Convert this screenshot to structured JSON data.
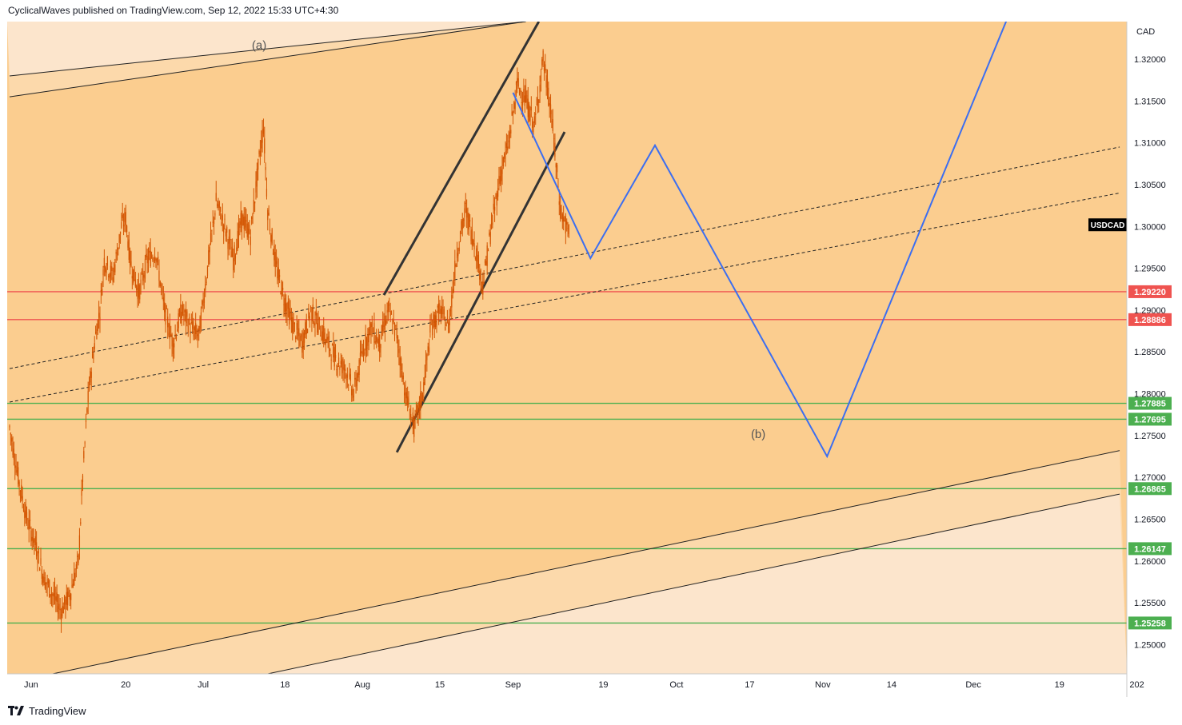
{
  "header": {
    "publisher_line": "CyclicalWaves published on TradingView.com, Sep 12, 2022 15:33 UTC+4:30"
  },
  "footer": {
    "brand": "TradingView"
  },
  "colors": {
    "plot_bg": "#fbcd8f",
    "zone_light": "#fce5cc",
    "zone_mid": "#fcd9ab",
    "candle": "#d35400",
    "forecast": "#3c6ef0",
    "red_level": "#ef5350",
    "green_level": "#4caf50",
    "channel_line": "#333333"
  },
  "chart_data": {
    "type": "candlestick",
    "symbol_label": "USDCAD",
    "currency": "CAD",
    "y_ticks": [
      "1.32000",
      "1.31500",
      "1.31000",
      "1.30500",
      "1.30000",
      "1.29500",
      "1.29000",
      "1.28500",
      "1.28000",
      "1.27500",
      "1.27000",
      "1.26500",
      "1.26000",
      "1.25500",
      "1.25000"
    ],
    "y_tick_values": [
      1.32,
      1.315,
      1.31,
      1.305,
      1.3,
      1.295,
      1.29,
      1.285,
      1.28,
      1.275,
      1.27,
      1.265,
      1.26,
      1.255,
      1.25
    ],
    "x_ticks": [
      "Jun",
      "20",
      "Jul",
      "18",
      "Aug",
      "15",
      "Sep",
      "19",
      "Oct",
      "17",
      "Nov",
      "14",
      "Dec",
      "19",
      "202"
    ],
    "x_tick_bars": [
      5,
      27,
      45,
      64,
      82,
      100,
      117,
      138,
      155,
      172,
      189,
      205,
      224,
      244,
      262
    ],
    "ylim": [
      1.2465,
      1.3245
    ],
    "last_price_label": "USDCAD",
    "horizontal_levels": [
      {
        "label": "1.29220",
        "value": 1.2922,
        "color": "red"
      },
      {
        "label": "1.28886",
        "value": 1.28886,
        "color": "red"
      },
      {
        "label": "1.27885",
        "value": 1.27885,
        "color": "green"
      },
      {
        "label": "1.27695",
        "value": 1.27695,
        "color": "green"
      },
      {
        "label": "1.26865",
        "value": 1.26865,
        "color": "green"
      },
      {
        "label": "1.26147",
        "value": 1.26147,
        "color": "green"
      },
      {
        "label": "1.25258",
        "value": 1.25258,
        "color": "green"
      }
    ],
    "annotations": [
      {
        "text": "(a)",
        "bar": 58,
        "price": 1.3212
      },
      {
        "text": "(b)",
        "bar": 174,
        "price": 1.2747
      }
    ],
    "price_path": [
      [
        0,
        1.276
      ],
      [
        2,
        1.27
      ],
      [
        4,
        1.265
      ],
      [
        6,
        1.262
      ],
      [
        8,
        1.258
      ],
      [
        10,
        1.256
      ],
      [
        12,
        1.254
      ],
      [
        14,
        1.256
      ],
      [
        16,
        1.26
      ],
      [
        17,
        1.27
      ],
      [
        18,
        1.278
      ],
      [
        19,
        1.283
      ],
      [
        20,
        1.287
      ],
      [
        21,
        1.29
      ],
      [
        22,
        1.296
      ],
      [
        24,
        1.294
      ],
      [
        26,
        1.3
      ],
      [
        27,
        1.301
      ],
      [
        28,
        1.296
      ],
      [
        30,
        1.292
      ],
      [
        32,
        1.296
      ],
      [
        34,
        1.297
      ],
      [
        36,
        1.29
      ],
      [
        38,
        1.286
      ],
      [
        40,
        1.29
      ],
      [
        42,
        1.288
      ],
      [
        44,
        1.287
      ],
      [
        46,
        1.295
      ],
      [
        48,
        1.303
      ],
      [
        50,
        1.3
      ],
      [
        52,
        1.296
      ],
      [
        54,
        1.301
      ],
      [
        56,
        1.299
      ],
      [
        58,
        1.308
      ],
      [
        59,
        1.312
      ],
      [
        60,
        1.302
      ],
      [
        62,
        1.295
      ],
      [
        64,
        1.291
      ],
      [
        66,
        1.288
      ],
      [
        68,
        1.286
      ],
      [
        70,
        1.29
      ],
      [
        72,
        1.288
      ],
      [
        74,
        1.286
      ],
      [
        76,
        1.284
      ],
      [
        78,
        1.283
      ],
      [
        80,
        1.28
      ],
      [
        82,
        1.285
      ],
      [
        84,
        1.288
      ],
      [
        86,
        1.286
      ],
      [
        88,
        1.29
      ],
      [
        90,
        1.287
      ],
      [
        92,
        1.28
      ],
      [
        94,
        1.276
      ],
      [
        96,
        1.28
      ],
      [
        98,
        1.288
      ],
      [
        100,
        1.29
      ],
      [
        102,
        1.288
      ],
      [
        104,
        1.297
      ],
      [
        106,
        1.302
      ],
      [
        108,
        1.298
      ],
      [
        110,
        1.293
      ],
      [
        112,
        1.3
      ],
      [
        114,
        1.306
      ],
      [
        116,
        1.31
      ],
      [
        118,
        1.317
      ],
      [
        120,
        1.315
      ],
      [
        122,
        1.312
      ],
      [
        124,
        1.32
      ],
      [
        126,
        1.313
      ],
      [
        128,
        1.302
      ],
      [
        130,
        1.299
      ]
    ],
    "forecast_path": [
      [
        117,
        1.316
      ],
      [
        135,
        1.2962
      ],
      [
        150,
        1.3097
      ],
      [
        190,
        1.2725
      ],
      [
        232,
        1.325
      ]
    ],
    "channel_lines": [
      {
        "style": "bold",
        "from": [
          87,
          1.2918
        ],
        "to": [
          123,
          1.3245
        ]
      },
      {
        "style": "bold",
        "from": [
          90,
          1.273
        ],
        "to": [
          129,
          1.3113
        ]
      }
    ],
    "dashed_lines": [
      {
        "from": [
          0,
          1.283
        ],
        "to": [
          258,
          1.3095
        ]
      },
      {
        "from": [
          0,
          1.279
        ],
        "to": [
          258,
          1.304
        ]
      }
    ],
    "trend_lines": [
      {
        "style": "thin",
        "from": [
          0,
          1.318
        ],
        "to": [
          120,
          1.3245
        ]
      },
      {
        "style": "thin",
        "from": [
          0,
          1.3155
        ],
        "to": [
          120,
          1.3245
        ]
      },
      {
        "style": "thin",
        "from": [
          10,
          1.2465
        ],
        "to": [
          258,
          1.2732
        ]
      },
      {
        "style": "thin",
        "from": [
          60,
          1.2465
        ],
        "to": [
          258,
          1.268
        ]
      }
    ]
  }
}
